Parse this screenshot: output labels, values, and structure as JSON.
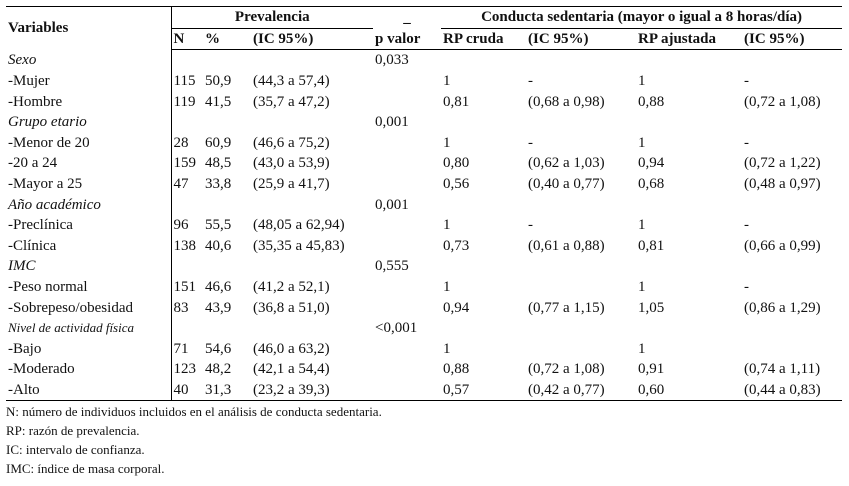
{
  "header": {
    "variables": "Variables",
    "prevalencia": "Prevalencia",
    "pvalor_marker": "_",
    "conducta": "Conducta sedentaria (mayor o igual a 8 horas/día)",
    "sub": [
      "N",
      "%",
      "(IC 95%)",
      "p valor",
      "RP cruda",
      "(IC 95%)",
      "RP ajustada",
      "(IC 95%)"
    ]
  },
  "rows": [
    {
      "type": "group",
      "label": "Sexo",
      "p": "0,033"
    },
    {
      "type": "data",
      "label": "-Mujer",
      "n": "115",
      "pct": "50,9",
      "ic": "(44,3 a 57,4)",
      "rpc": "1",
      "icc": "-",
      "rpa": "1",
      "ica": "-"
    },
    {
      "type": "data",
      "label": "-Hombre",
      "n": "119",
      "pct": "41,5",
      "ic": "(35,7 a 47,2)",
      "rpc": "0,81",
      "icc": "(0,68 a 0,98)",
      "rpa": "0,88",
      "ica": "(0,72 a 1,08)"
    },
    {
      "type": "group",
      "label": "Grupo etario",
      "p": "0,001"
    },
    {
      "type": "data",
      "label": "-Menor de 20",
      "n": "28",
      "pct": "60,9",
      "ic": "(46,6 a 75,2)",
      "rpc": "1",
      "icc": "-",
      "rpa": "1",
      "ica": "-"
    },
    {
      "type": "data",
      "label": "-20 a 24",
      "n": "159",
      "pct": "48,5",
      "ic": "(43,0 a 53,9)",
      "rpc": "0,80",
      "icc": "(0,62 a 1,03)",
      "rpa": "0,94",
      "ica": "(0,72 a 1,22)"
    },
    {
      "type": "data",
      "label": "-Mayor a 25",
      "n": "47",
      "pct": "33,8",
      "ic": "(25,9 a 41,7)",
      "rpc": "0,56",
      "icc": "(0,40 a 0,77)",
      "rpa": "0,68",
      "ica": "(0,48 a 0,97)"
    },
    {
      "type": "group",
      "label": "Año académico",
      "p": "0,001"
    },
    {
      "type": "data",
      "label": "-Preclínica",
      "n": "96",
      "pct": "55,5",
      "ic": "(48,05 a 62,94)",
      "rpc": "1",
      "icc": "-",
      "rpa": "1",
      "ica": "-"
    },
    {
      "type": "data",
      "label": "-Clínica",
      "n": "138",
      "pct": "40,6",
      "ic": "(35,35 a 45,83)",
      "rpc": "0,73",
      "icc": "(0,61 a 0,88)",
      "rpa": "0,81",
      "ica": "(0,66 a 0,99)"
    },
    {
      "type": "group",
      "label": "IMC",
      "p": "0,555"
    },
    {
      "type": "data",
      "label": "-Peso normal",
      "n": "151",
      "pct": "46,6",
      "ic": "(41,2 a 52,1)",
      "rpc": "1",
      "icc": "",
      "rpa": "1",
      "ica": "-"
    },
    {
      "type": "data",
      "label": "-Sobrepeso/obesidad",
      "n": "83",
      "pct": "43,9",
      "ic": "(36,8 a 51,0)",
      "rpc": "0,94",
      "icc": "(0,77 a 1,15)",
      "rpa": "1,05",
      "ica": "(0,86 a 1,29)"
    },
    {
      "type": "group",
      "label": "Nivel de actividad física",
      "p": "<0,001",
      "small": true
    },
    {
      "type": "data",
      "label": "-Bajo",
      "n": "71",
      "pct": "54,6",
      "ic": "(46,0 a 63,2)",
      "rpc": "1",
      "icc": "",
      "rpa": "1",
      "ica": ""
    },
    {
      "type": "data",
      "label": "-Moderado",
      "n": "123",
      "pct": "48,2",
      "ic": "(42,1 a 54,4)",
      "rpc": "0,88",
      "icc": "(0,72 a 1,08)",
      "rpa": "0,91",
      "ica": "(0,74 a 1,11)"
    },
    {
      "type": "data",
      "label": "-Alto",
      "n": "40",
      "pct": "31,3",
      "ic": "(23,2 a 39,3)",
      "rpc": "0,57",
      "icc": "(0,42 a 0,77)",
      "rpa": "0,60",
      "ica": "(0,44 a 0,83)"
    }
  ],
  "notes": [
    "N: número de individuos incluidos en el análisis de conducta sedentaria.",
    "RP: razón de prevalencia.",
    "IC: intervalo de confianza.",
    "IMC: índice de masa corporal."
  ]
}
